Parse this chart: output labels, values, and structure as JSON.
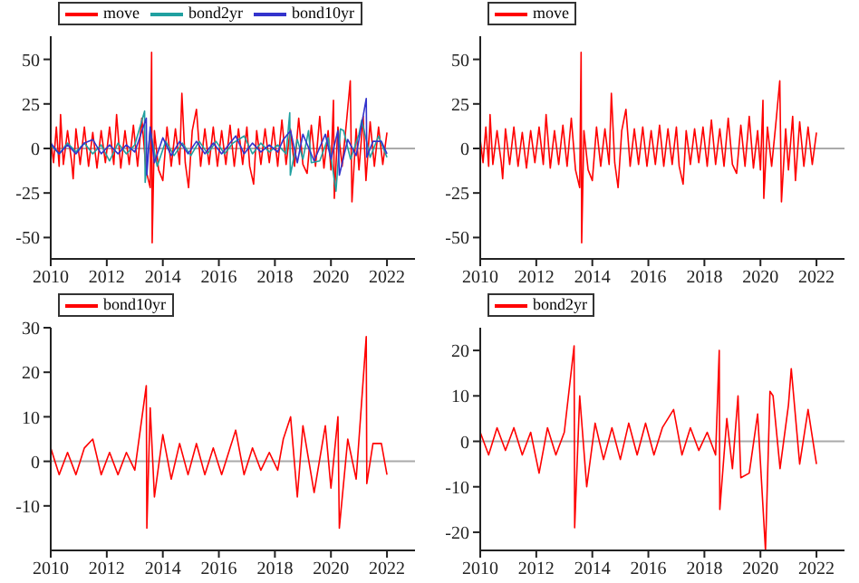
{
  "chart_data": [
    {
      "type": "line",
      "xlim": [
        2010,
        2023
      ],
      "xticks": [
        2010,
        2012,
        2014,
        2016,
        2018,
        2020,
        2022
      ],
      "ylim": [
        -62,
        63
      ],
      "yticks": [
        -50,
        -25,
        0,
        25,
        50
      ],
      "legend": "top left",
      "marker": "none",
      "line_style": "solid",
      "ref_lines": [
        {
          "axis": "y",
          "value": 0,
          "color": "#aaaaaa"
        }
      ],
      "series": [
        {
          "name": "move",
          "color": "#ff0000",
          "x": [
            2010.0,
            2010.1,
            2010.2,
            2010.3,
            2010.35,
            2010.45,
            2010.6,
            2010.75,
            2010.8,
            2010.9,
            2011.05,
            2011.2,
            2011.35,
            2011.5,
            2011.65,
            2011.8,
            2011.95,
            2012.1,
            2012.25,
            2012.35,
            2012.5,
            2012.65,
            2012.8,
            2012.95,
            2013.1,
            2013.25,
            2013.4,
            2013.55,
            2013.6,
            2013.62,
            2013.7,
            2013.85,
            2014.0,
            2014.15,
            2014.3,
            2014.45,
            2014.6,
            2014.68,
            2014.8,
            2014.92,
            2015.05,
            2015.2,
            2015.35,
            2015.5,
            2015.65,
            2015.8,
            2015.95,
            2016.1,
            2016.25,
            2016.4,
            2016.55,
            2016.7,
            2016.85,
            2017.0,
            2017.1,
            2017.24,
            2017.35,
            2017.5,
            2017.65,
            2017.8,
            2017.95,
            2018.1,
            2018.25,
            2018.4,
            2018.55,
            2018.7,
            2018.85,
            2019.0,
            2019.15,
            2019.3,
            2019.45,
            2019.6,
            2019.75,
            2019.9,
            2020.0,
            2020.09,
            2020.12,
            2020.25,
            2020.4,
            2020.55,
            2020.69,
            2020.75,
            2020.9,
            2021.0,
            2021.15,
            2021.25,
            2021.4,
            2021.55,
            2021.7,
            2021.85,
            2022.0
          ],
          "values": [
            5,
            -8,
            12,
            -10,
            19,
            -9,
            10,
            -8,
            -17,
            11,
            -9,
            12,
            -10,
            9,
            -11,
            10,
            -8,
            12,
            -9,
            19,
            -11,
            10,
            -9,
            13,
            -10,
            17,
            -12,
            -22,
            54,
            -53,
            10,
            -12,
            -18,
            12,
            -10,
            11,
            -9,
            31,
            -8,
            -22,
            10,
            22,
            -10,
            11,
            -9,
            12,
            -10,
            10,
            -9,
            13,
            -10,
            11,
            -9,
            12,
            -10,
            -20,
            10,
            -9,
            11,
            -8,
            12,
            -10,
            16,
            -9,
            11,
            -10,
            17,
            -9,
            -14,
            13,
            -10,
            18,
            -11,
            10,
            -12,
            27,
            -28,
            12,
            -10,
            14,
            38,
            -30,
            11,
            -12,
            18,
            -18,
            15,
            -10,
            12,
            -9,
            9
          ]
        },
        {
          "name": "bond2yr",
          "color": "#20a0a0",
          "x": [
            2010.0,
            2010.3,
            2010.6,
            2010.9,
            2011.2,
            2011.5,
            2011.8,
            2012.1,
            2012.4,
            2012.7,
            2013.0,
            2013.35,
            2013.37,
            2013.55,
            2013.8,
            2014.1,
            2014.4,
            2014.7,
            2015.0,
            2015.3,
            2015.6,
            2015.9,
            2016.2,
            2016.5,
            2016.9,
            2017.2,
            2017.5,
            2017.8,
            2018.1,
            2018.4,
            2018.53,
            2018.55,
            2018.8,
            2019.0,
            2019.2,
            2019.3,
            2019.6,
            2019.9,
            2020.18,
            2020.34,
            2020.45,
            2020.7,
            2021.0,
            2021.1,
            2021.4,
            2021.7,
            2022.0
          ],
          "values": [
            2,
            -3,
            3,
            -2,
            3,
            -3,
            2,
            -7,
            3,
            -3,
            2,
            21,
            -19,
            10,
            -10,
            4,
            -4,
            3,
            -4,
            4,
            -3,
            4,
            -3,
            3,
            7,
            -3,
            3,
            -2,
            2,
            -3,
            20,
            -15,
            5,
            -6,
            10,
            -8,
            -7,
            6,
            -24,
            11,
            10,
            -6,
            8,
            16,
            -5,
            7,
            -5
          ]
        },
        {
          "name": "bond10yr",
          "color": "#3333cc",
          "x": [
            2010.0,
            2010.3,
            2010.6,
            2010.9,
            2011.2,
            2011.5,
            2011.8,
            2012.1,
            2012.4,
            2012.7,
            2013.0,
            2013.41,
            2013.43,
            2013.55,
            2013.7,
            2014.0,
            2014.3,
            2014.6,
            2014.9,
            2015.2,
            2015.5,
            2015.8,
            2016.1,
            2016.4,
            2016.6,
            2016.9,
            2017.2,
            2017.5,
            2017.8,
            2018.1,
            2018.3,
            2018.56,
            2018.8,
            2019.0,
            2019.4,
            2019.8,
            2020.0,
            2020.25,
            2020.3,
            2020.6,
            2020.9,
            2021.26,
            2021.28,
            2021.5,
            2021.8,
            2022.0
          ],
          "values": [
            3,
            -3,
            2,
            -3,
            3,
            5,
            -3,
            2,
            -3,
            2,
            -2,
            17,
            -15,
            12,
            -8,
            6,
            -4,
            4,
            -3,
            4,
            -3,
            3,
            -3,
            3,
            7,
            -3,
            3,
            -2,
            2,
            -2,
            5,
            10,
            -8,
            8,
            -7,
            8,
            -6,
            10,
            -15,
            5,
            -4,
            28,
            -5,
            4,
            4,
            -3
          ]
        }
      ]
    },
    {
      "type": "line",
      "xlim": [
        2010,
        2023
      ],
      "xticks": [
        2010,
        2012,
        2014,
        2016,
        2018,
        2020,
        2022
      ],
      "ylim": [
        -62,
        63
      ],
      "yticks": [
        -50,
        -25,
        0,
        25,
        50
      ],
      "legend": "top left",
      "marker": "none",
      "line_style": "solid",
      "ref_lines": [
        {
          "axis": "y",
          "value": 0,
          "color": "#aaaaaa"
        }
      ],
      "series": [
        {
          "name": "move",
          "color": "#ff0000",
          "x": [
            2010.0,
            2010.1,
            2010.2,
            2010.3,
            2010.35,
            2010.45,
            2010.6,
            2010.75,
            2010.8,
            2010.9,
            2011.05,
            2011.2,
            2011.35,
            2011.5,
            2011.65,
            2011.8,
            2011.95,
            2012.1,
            2012.25,
            2012.35,
            2012.5,
            2012.65,
            2012.8,
            2012.95,
            2013.1,
            2013.25,
            2013.4,
            2013.55,
            2013.6,
            2013.62,
            2013.7,
            2013.85,
            2014.0,
            2014.15,
            2014.3,
            2014.45,
            2014.6,
            2014.68,
            2014.8,
            2014.92,
            2015.05,
            2015.2,
            2015.35,
            2015.5,
            2015.65,
            2015.8,
            2015.95,
            2016.1,
            2016.25,
            2016.4,
            2016.55,
            2016.7,
            2016.85,
            2017.0,
            2017.1,
            2017.24,
            2017.35,
            2017.5,
            2017.65,
            2017.8,
            2017.95,
            2018.1,
            2018.25,
            2018.4,
            2018.55,
            2018.7,
            2018.85,
            2019.0,
            2019.15,
            2019.3,
            2019.45,
            2019.6,
            2019.75,
            2019.9,
            2020.0,
            2020.09,
            2020.12,
            2020.25,
            2020.4,
            2020.55,
            2020.69,
            2020.75,
            2020.9,
            2021.0,
            2021.15,
            2021.25,
            2021.4,
            2021.55,
            2021.7,
            2021.85,
            2022.0
          ],
          "values": [
            5,
            -8,
            12,
            -10,
            19,
            -9,
            10,
            -8,
            -17,
            11,
            -9,
            12,
            -10,
            9,
            -11,
            10,
            -8,
            12,
            -9,
            19,
            -11,
            10,
            -9,
            13,
            -10,
            17,
            -12,
            -22,
            54,
            -53,
            10,
            -12,
            -18,
            12,
            -10,
            11,
            -9,
            31,
            -8,
            -22,
            10,
            22,
            -10,
            11,
            -9,
            12,
            -10,
            10,
            -9,
            13,
            -10,
            11,
            -9,
            12,
            -10,
            -20,
            10,
            -9,
            11,
            -8,
            12,
            -10,
            16,
            -9,
            11,
            -10,
            17,
            -9,
            -14,
            13,
            -10,
            18,
            -11,
            10,
            -12,
            27,
            -28,
            12,
            -10,
            14,
            38,
            -30,
            11,
            -12,
            18,
            -18,
            15,
            -10,
            12,
            -9,
            9
          ]
        }
      ]
    },
    {
      "type": "line",
      "xlim": [
        2010,
        2023
      ],
      "xticks": [
        2010,
        2012,
        2014,
        2016,
        2018,
        2020,
        2022
      ],
      "ylim": [
        -20,
        30
      ],
      "yticks": [
        -10,
        0,
        10,
        20,
        30
      ],
      "legend": "top left",
      "marker": "none",
      "line_style": "solid",
      "ref_lines": [
        {
          "axis": "y",
          "value": 0,
          "color": "#aaaaaa"
        }
      ],
      "series": [
        {
          "name": "bond10yr",
          "color": "#ff0000",
          "x": [
            2010.0,
            2010.3,
            2010.6,
            2010.9,
            2011.2,
            2011.5,
            2011.8,
            2012.1,
            2012.4,
            2012.7,
            2013.0,
            2013.41,
            2013.43,
            2013.55,
            2013.7,
            2014.0,
            2014.3,
            2014.6,
            2014.9,
            2015.2,
            2015.5,
            2015.8,
            2016.1,
            2016.4,
            2016.6,
            2016.9,
            2017.2,
            2017.5,
            2017.8,
            2018.1,
            2018.3,
            2018.56,
            2018.8,
            2019.0,
            2019.4,
            2019.8,
            2020.0,
            2020.25,
            2020.3,
            2020.6,
            2020.9,
            2021.26,
            2021.28,
            2021.5,
            2021.8,
            2022.0
          ],
          "values": [
            3,
            -3,
            2,
            -3,
            3,
            5,
            -3,
            2,
            -3,
            2,
            -2,
            17,
            -15,
            12,
            -8,
            6,
            -4,
            4,
            -3,
            4,
            -3,
            3,
            -3,
            3,
            7,
            -3,
            3,
            -2,
            2,
            -2,
            5,
            10,
            -8,
            8,
            -7,
            8,
            -6,
            10,
            -15,
            5,
            -4,
            28,
            -5,
            4,
            4,
            -3
          ]
        }
      ]
    },
    {
      "type": "line",
      "xlim": [
        2010,
        2023
      ],
      "xticks": [
        2010,
        2012,
        2014,
        2016,
        2018,
        2020,
        2022
      ],
      "ylim": [
        -24,
        25
      ],
      "yticks": [
        -20,
        -10,
        0,
        10,
        20
      ],
      "legend": "top left",
      "marker": "none",
      "line_style": "solid",
      "ref_lines": [
        {
          "axis": "y",
          "value": 0,
          "color": "#aaaaaa"
        }
      ],
      "series": [
        {
          "name": "bond2yr",
          "color": "#ff0000",
          "x": [
            2010.0,
            2010.3,
            2010.6,
            2010.9,
            2011.2,
            2011.5,
            2011.8,
            2012.1,
            2012.4,
            2012.7,
            2013.0,
            2013.35,
            2013.37,
            2013.55,
            2013.8,
            2014.1,
            2014.4,
            2014.7,
            2015.0,
            2015.3,
            2015.6,
            2015.9,
            2016.2,
            2016.5,
            2016.9,
            2017.2,
            2017.5,
            2017.8,
            2018.1,
            2018.4,
            2018.53,
            2018.55,
            2018.8,
            2019.0,
            2019.2,
            2019.3,
            2019.6,
            2019.9,
            2020.18,
            2020.34,
            2020.45,
            2020.7,
            2021.0,
            2021.1,
            2021.4,
            2021.7,
            2022.0
          ],
          "values": [
            2,
            -3,
            3,
            -2,
            3,
            -3,
            2,
            -7,
            3,
            -3,
            2,
            21,
            -19,
            10,
            -10,
            4,
            -4,
            3,
            -4,
            4,
            -3,
            4,
            -3,
            3,
            7,
            -3,
            3,
            -2,
            2,
            -3,
            20,
            -15,
            5,
            -6,
            10,
            -8,
            -7,
            6,
            -24,
            11,
            10,
            -6,
            8,
            16,
            -5,
            7,
            -5
          ]
        }
      ]
    }
  ]
}
